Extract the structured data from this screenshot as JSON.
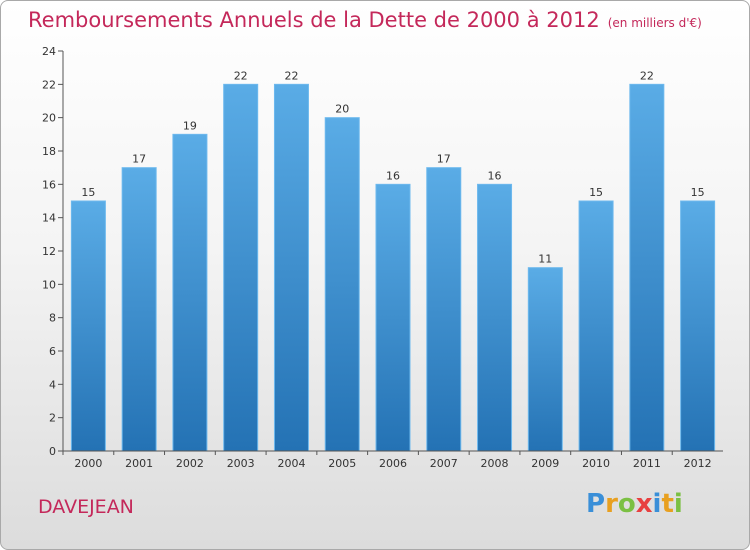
{
  "header": {
    "title": "Remboursements Annuels de la Dette de 2000 à 2012",
    "unit": "(en milliers d'€)"
  },
  "commune": "DAVEJEAN",
  "logo": {
    "letters": [
      "P",
      "r",
      "o",
      "x",
      "i",
      "t",
      "i"
    ],
    "colors": [
      "#3a8fd8",
      "#e8a020",
      "#7bc043",
      "#e84040",
      "#3a8fd8",
      "#e8a020",
      "#7bc043"
    ]
  },
  "colors": {
    "bar_top": "#5aace6",
    "bar_bottom": "#2472b4",
    "title": "#c4285a"
  },
  "chart_data": {
    "type": "bar",
    "categories": [
      "2000",
      "2001",
      "2002",
      "2003",
      "2004",
      "2005",
      "2006",
      "2007",
      "2008",
      "2009",
      "2010",
      "2011",
      "2012"
    ],
    "values": [
      15,
      17,
      19,
      22,
      22,
      20,
      16,
      17,
      16,
      11,
      15,
      22,
      15
    ],
    "ylim": [
      0,
      24
    ],
    "yticks": [
      0,
      2,
      4,
      6,
      8,
      10,
      12,
      14,
      16,
      18,
      20,
      22,
      24
    ],
    "grid": false,
    "legend": "none"
  }
}
